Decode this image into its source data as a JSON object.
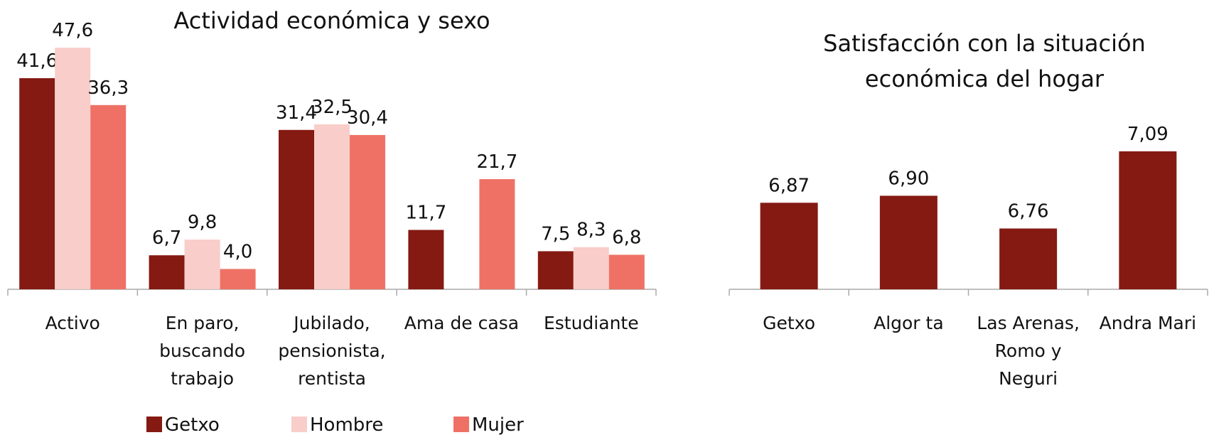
{
  "chart_data": [
    {
      "type": "bar",
      "title": "Actividad económica y sexo",
      "categories": [
        "Activo",
        "En paro, buscando trabajo",
        "Jubilado, pensionista, rentista",
        "Ama de casa",
        "Estudiante"
      ],
      "series": [
        {
          "name": "Getxo",
          "color": "#841a12",
          "values": [
            41.6,
            6.7,
            31.4,
            11.7,
            7.5
          ],
          "value_labels": [
            "41,6",
            "6,7",
            "31,4",
            "11,7",
            "7,5"
          ]
        },
        {
          "name": "Hombre",
          "color": "#f9cdc9",
          "values": [
            47.6,
            9.8,
            32.5,
            null,
            8.3
          ],
          "value_labels": [
            "47,6",
            "9,8",
            "32,5",
            null,
            "8,3"
          ]
        },
        {
          "name": "Mujer",
          "color": "#ef7166",
          "values": [
            36.3,
            4.0,
            30.4,
            21.7,
            6.8
          ],
          "value_labels": [
            "36,3",
            "4,0",
            "30,4",
            "21,7",
            "6,8"
          ]
        }
      ],
      "ylim": [
        0,
        50
      ],
      "legend": "bottom"
    },
    {
      "type": "bar",
      "title": "Satisfacción con la situación económica del hogar",
      "categories": [
        "Getxo",
        "Algor ta",
        "Las Arenas, Romo y Neguri",
        "Andra Mari"
      ],
      "values": [
        6.87,
        6.9,
        6.76,
        7.09
      ],
      "value_labels": [
        "6,87",
        "6,90",
        "6,76",
        "7,09"
      ],
      "color": "#841a12",
      "ylim": [
        6.5,
        7.5
      ]
    }
  ]
}
